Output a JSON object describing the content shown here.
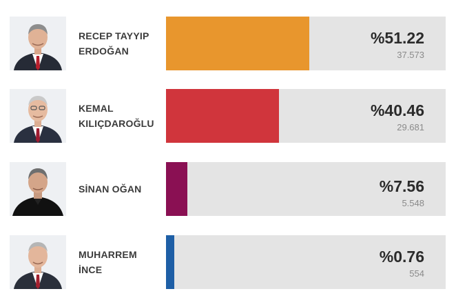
{
  "candidates": [
    {
      "name": "RECEP TAYYIP\nERDOĞAN",
      "percent_label": "%51.22",
      "votes_label": "37.573",
      "percent": 51.22,
      "color": "#e8962d",
      "photo_icon": "candidate-portrait-icon"
    },
    {
      "name": "KEMAL\nKILIÇDAROĞLU",
      "percent_label": "%40.46",
      "votes_label": "29.681",
      "percent": 40.46,
      "color": "#d0353c",
      "photo_icon": "candidate-portrait-icon"
    },
    {
      "name": "SİNAN OĞAN",
      "percent_label": "%7.56",
      "votes_label": "5.548",
      "percent": 7.56,
      "color": "#8a1053",
      "photo_icon": "candidate-portrait-icon"
    },
    {
      "name": "MUHARREM\nİNCE",
      "percent_label": "%0.76",
      "votes_label": "554",
      "percent": 0.76,
      "color": "#1e5fa6",
      "photo_icon": "candidate-portrait-icon"
    }
  ]
}
